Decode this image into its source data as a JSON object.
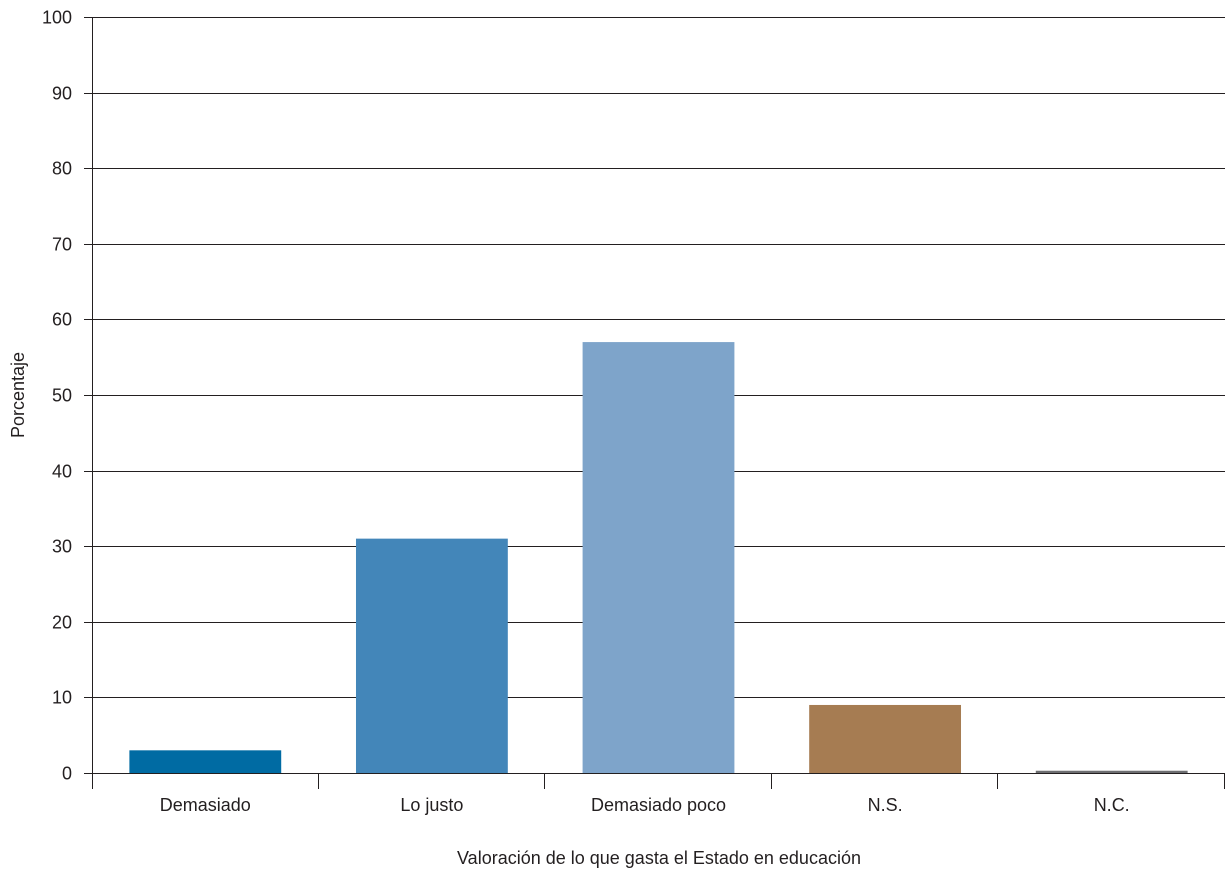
{
  "chart_data": {
    "type": "bar",
    "categories": [
      "Demasiado",
      "Lo justo",
      "Demasiado poco",
      "N.S.",
      "N.C."
    ],
    "values": [
      3,
      31,
      57,
      9,
      0.3
    ],
    "colors": [
      "#006ba3",
      "#4386b9",
      "#7ea4ca",
      "#a67c52",
      "#6d6e71"
    ],
    "title": "",
    "xlabel": "Valoración de lo que gasta el Estado en educación",
    "ylabel": "Porcentaje",
    "ylim": [
      0,
      100
    ],
    "yticks": [
      0,
      10,
      20,
      30,
      40,
      50,
      60,
      70,
      80,
      90,
      100
    ],
    "grid": true
  }
}
